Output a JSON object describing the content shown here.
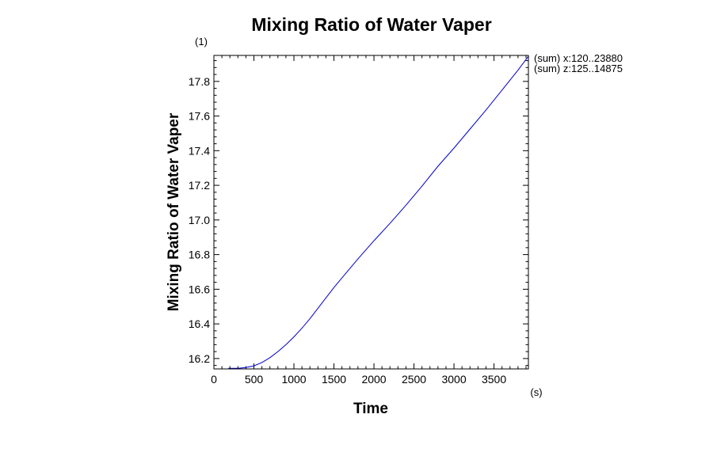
{
  "chart_data": {
    "type": "line",
    "title": "Mixing Ratio of Water Vaper",
    "xlabel": "Time",
    "ylabel": "Mixing Ratio of Water Vaper",
    "x_unit": "(s)",
    "y_unit": "(1)",
    "xlim": [
      0,
      3930
    ],
    "ylim": [
      16.14,
      17.95
    ],
    "x_ticks": [
      0,
      500,
      1000,
      1500,
      2000,
      2500,
      3000,
      3500
    ],
    "x_tick_labels": [
      "0",
      "500",
      "1000",
      "1500",
      "2000",
      "2500",
      "3000",
      "3500"
    ],
    "y_ticks": [
      16.2,
      16.4,
      16.6,
      16.8,
      17.0,
      17.2,
      17.4,
      17.6,
      17.8
    ],
    "y_tick_labels": [
      "16.2",
      "16.4",
      "16.6",
      "16.8",
      "17.0",
      "17.2",
      "17.4",
      "17.6",
      "17.8"
    ],
    "grid": false,
    "annotations": [
      "(sum) x:120..23880",
      "(sum) z:125..14875"
    ],
    "series": [
      {
        "color": "#0000cc",
        "x": [
          180,
          300,
          400,
          500,
          600,
          700,
          800,
          900,
          1000,
          1100,
          1200,
          1300,
          1400,
          1500,
          1600,
          1700,
          1800,
          2000,
          2200,
          2400,
          2600,
          2800,
          3000,
          3200,
          3400,
          3600,
          3800,
          3930
        ],
        "y": [
          16.143,
          16.143,
          16.148,
          16.158,
          16.177,
          16.205,
          16.24,
          16.28,
          16.325,
          16.375,
          16.43,
          16.49,
          16.55,
          16.61,
          16.665,
          16.72,
          16.775,
          16.88,
          16.98,
          17.085,
          17.195,
          17.31,
          17.415,
          17.525,
          17.635,
          17.75,
          17.865,
          17.945
        ]
      }
    ]
  }
}
